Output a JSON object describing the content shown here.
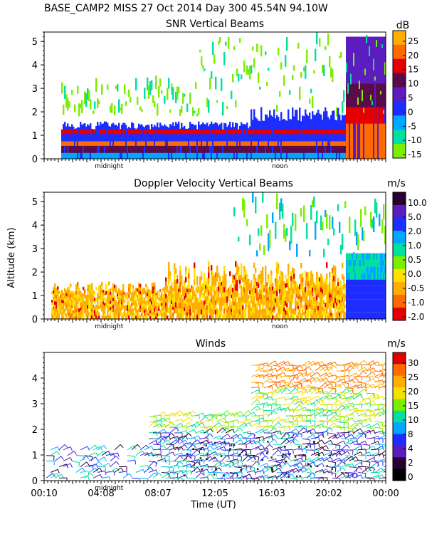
{
  "header": {
    "title": "BASE_CAMP2 MISS  27 Oct 2014 Day 300 45.54N  94.10W"
  },
  "chart_data": [
    {
      "type": "heatmap",
      "title": "SNR Vertical Beams",
      "ylabel": "",
      "ylim": [
        0,
        5.4
      ],
      "yticks": [
        "0",
        "1",
        "2",
        "3",
        "4",
        "5"
      ],
      "x_markers": [
        "midnight",
        "noon"
      ],
      "colorbar": {
        "unit": "dB",
        "labels": [
          "25",
          "20",
          "15",
          "10",
          "5",
          "0",
          "-5",
          "-10",
          "-15"
        ],
        "colors": [
          "#ffae00",
          "#ff6a00",
          "#e40000",
          "#5a0c4a",
          "#5b1dbf",
          "#1d2dff",
          "#00a6ff",
          "#00e0a0",
          "#7cee00"
        ]
      }
    },
    {
      "type": "heatmap",
      "title": "Doppler Velocity Vertical Beams",
      "ylabel": "Altitude (km)",
      "ylim": [
        0,
        5.4
      ],
      "yticks": [
        "0",
        "1",
        "2",
        "3",
        "4",
        "5"
      ],
      "x_markers": [
        "midnight",
        "noon"
      ],
      "colorbar": {
        "unit": "m/s",
        "labels": [
          "10.0",
          "5.0",
          "2.0",
          "1.0",
          "0.5",
          "0.0",
          "-0.5",
          "-1.0",
          "-2.0"
        ],
        "colors": [
          "#2a0032",
          "#5b1dbf",
          "#1d2dff",
          "#00a6ff",
          "#00e0a0",
          "#7cee00",
          "#ffe000",
          "#ffae00",
          "#ff6a00",
          "#e40000"
        ]
      }
    },
    {
      "type": "scatter",
      "title": "Winds",
      "ylabel": "",
      "xlabel": "Time (UT)",
      "ylim": [
        0,
        5
      ],
      "yticks": [
        "0",
        "1",
        "2",
        "3",
        "4"
      ],
      "x_markers": [
        "midnight"
      ],
      "xtick_labels": [
        "00:10",
        "04:08",
        "08:07",
        "12:05",
        "16:03",
        "20:02",
        "00:00"
      ],
      "colorbar": {
        "unit": "m/s",
        "labels": [
          "30",
          "25",
          "20",
          "15",
          "10",
          "8",
          "4",
          "2",
          "0"
        ],
        "colors": [
          "#e00000",
          "#ff6a00",
          "#ffae00",
          "#f6e000",
          "#7cee00",
          "#00e0a0",
          "#00a6ff",
          "#1d2dff",
          "#5b1dbf",
          "#2a0032",
          "#000000"
        ]
      }
    }
  ]
}
